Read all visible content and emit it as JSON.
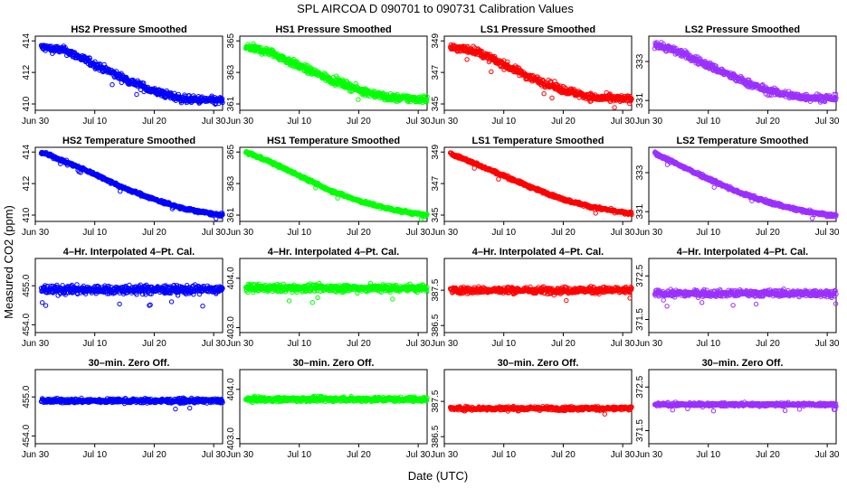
{
  "figure": {
    "title": "SPL    AIRCOA D    090701 to 090731    Calibration Values",
    "xlabel": "Date (UTC)",
    "ylabel": "Measured CO2 (ppm)"
  },
  "chart_data": [
    {
      "type": "scatter",
      "title": "HS2 Pressure Smoothed",
      "color": "#0000ff",
      "row": 0,
      "col": 0,
      "ylim": [
        409.6,
        414.3
      ],
      "yticks": [
        410,
        412,
        414
      ],
      "yticklabels": [
        "410",
        "412",
        "414"
      ],
      "xticks": [
        0,
        10,
        20,
        30
      ],
      "xticklabels": [
        "Jun 30",
        "Jul 10",
        "Jul 20",
        "Jul 30"
      ],
      "xlim": [
        0,
        31.5
      ],
      "trend": [
        [
          1,
          413.6
        ],
        [
          5,
          413.4
        ],
        [
          10,
          412.5
        ],
        [
          15,
          411.6
        ],
        [
          20,
          410.8
        ],
        [
          25,
          410.3
        ],
        [
          31,
          410.2
        ]
      ],
      "noise": 0.25
    },
    {
      "type": "scatter",
      "title": "HS1 Pressure Smoothed",
      "color": "#00ff00",
      "row": 0,
      "col": 1,
      "ylim": [
        360.6,
        365.3
      ],
      "yticks": [
        361,
        363,
        365
      ],
      "yticklabels": [
        "361",
        "363",
        "365"
      ],
      "xticks": [
        0,
        10,
        20,
        30
      ],
      "xticklabels": [
        "Jun 30",
        "Jul 10",
        "Jul 20",
        "Jul 30"
      ],
      "xlim": [
        0,
        31.5
      ],
      "trend": [
        [
          1,
          364.6
        ],
        [
          5,
          364.3
        ],
        [
          10,
          363.4
        ],
        [
          15,
          362.6
        ],
        [
          20,
          361.9
        ],
        [
          25,
          361.4
        ],
        [
          31,
          361.3
        ]
      ],
      "noise": 0.25
    },
    {
      "type": "scatter",
      "title": "LS1 Pressure Smoothed",
      "color": "#ff0000",
      "row": 0,
      "col": 2,
      "ylim": [
        344.6,
        349.3
      ],
      "yticks": [
        345,
        347,
        349
      ],
      "yticklabels": [
        "345",
        "347",
        "349"
      ],
      "xticks": [
        0,
        10,
        20,
        30
      ],
      "xticklabels": [
        "Jun 30",
        "Jul 10",
        "Jul 20",
        "Jul 30"
      ],
      "xlim": [
        0,
        31.5
      ],
      "trend": [
        [
          1,
          348.6
        ],
        [
          5,
          348.4
        ],
        [
          10,
          347.5
        ],
        [
          15,
          346.6
        ],
        [
          20,
          345.9
        ],
        [
          25,
          345.4
        ],
        [
          31,
          345.3
        ]
      ],
      "noise": 0.25
    },
    {
      "type": "scatter",
      "title": "LS2 Pressure Smoothed",
      "color": "#9b30ff",
      "row": 0,
      "col": 3,
      "ylim": [
        330.5,
        334.3
      ],
      "yticks": [
        331,
        333
      ],
      "yticklabels": [
        "331",
        "333"
      ],
      "xticks": [
        0,
        10,
        20,
        30
      ],
      "xticklabels": [
        "Jun 30",
        "Jul 10",
        "Jul 20",
        "Jul 30"
      ],
      "xlim": [
        0,
        31.5
      ],
      "trend": [
        [
          1,
          333.9
        ],
        [
          5,
          333.5
        ],
        [
          10,
          332.8
        ],
        [
          15,
          332.1
        ],
        [
          20,
          331.5
        ],
        [
          25,
          331.2
        ],
        [
          31,
          331.1
        ]
      ],
      "noise": 0.2
    },
    {
      "type": "scatter",
      "title": "HS2 Temperature Smoothed",
      "color": "#0000ff",
      "row": 1,
      "col": 0,
      "ylim": [
        409.6,
        414.3
      ],
      "yticks": [
        410,
        412,
        414
      ],
      "yticklabels": [
        "410",
        "412",
        "414"
      ],
      "xticks": [
        0,
        10,
        20,
        30
      ],
      "xticklabels": [
        "Jun 30",
        "Jul 10",
        "Jul 20",
        "Jul 30"
      ],
      "xlim": [
        0,
        31.5
      ],
      "trend": [
        [
          1,
          414.0
        ],
        [
          5,
          413.4
        ],
        [
          10,
          412.6
        ],
        [
          15,
          411.7
        ],
        [
          20,
          411.0
        ],
        [
          25,
          410.4
        ],
        [
          31,
          410.0
        ]
      ],
      "noise": 0.1
    },
    {
      "type": "scatter",
      "title": "HS1 Temperature Smoothed",
      "color": "#00ff00",
      "row": 1,
      "col": 1,
      "ylim": [
        360.6,
        365.3
      ],
      "yticks": [
        361,
        363,
        365
      ],
      "yticklabels": [
        "361",
        "363",
        "365"
      ],
      "xticks": [
        0,
        10,
        20,
        30
      ],
      "xticklabels": [
        "Jun 30",
        "Jul 10",
        "Jul 20",
        "Jul 30"
      ],
      "xlim": [
        0,
        31.5
      ],
      "trend": [
        [
          1,
          365.0
        ],
        [
          5,
          364.4
        ],
        [
          10,
          363.5
        ],
        [
          15,
          362.6
        ],
        [
          20,
          361.9
        ],
        [
          25,
          361.4
        ],
        [
          31,
          361.0
        ]
      ],
      "noise": 0.1
    },
    {
      "type": "scatter",
      "title": "LS1 Temperature Smoothed",
      "color": "#ff0000",
      "row": 1,
      "col": 2,
      "ylim": [
        344.6,
        349.3
      ],
      "yticks": [
        345,
        347,
        349
      ],
      "yticklabels": [
        "345",
        "347",
        "349"
      ],
      "xticks": [
        0,
        10,
        20,
        30
      ],
      "xticklabels": [
        "Jun 30",
        "Jul 10",
        "Jul 20",
        "Jul 30"
      ],
      "xlim": [
        0,
        31.5
      ],
      "trend": [
        [
          1,
          348.9
        ],
        [
          5,
          348.3
        ],
        [
          10,
          347.5
        ],
        [
          15,
          346.7
        ],
        [
          20,
          346.0
        ],
        [
          25,
          345.5
        ],
        [
          31,
          345.1
        ]
      ],
      "noise": 0.1
    },
    {
      "type": "scatter",
      "title": "LS2 Temperature Smoothed",
      "color": "#9b30ff",
      "row": 1,
      "col": 3,
      "ylim": [
        330.5,
        334.3
      ],
      "yticks": [
        331,
        333
      ],
      "yticklabels": [
        "331",
        "333"
      ],
      "xticks": [
        0,
        10,
        20,
        30
      ],
      "xticklabels": [
        "Jun 30",
        "Jul 10",
        "Jul 20",
        "Jul 30"
      ],
      "xlim": [
        0,
        31.5
      ],
      "trend": [
        [
          1,
          334.0
        ],
        [
          5,
          333.4
        ],
        [
          10,
          332.7
        ],
        [
          15,
          332.0
        ],
        [
          20,
          331.5
        ],
        [
          25,
          331.1
        ],
        [
          31,
          330.8
        ]
      ],
      "noise": 0.1
    },
    {
      "type": "scatter",
      "title": "4–Hr. Interpolated 4–Pt. Cal.",
      "color": "#0000ff",
      "row": 2,
      "col": 0,
      "ylim": [
        453.8,
        455.7
      ],
      "yticks": [
        454.0,
        455.0
      ],
      "yticklabels": [
        "454.0",
        "455.0"
      ],
      "xticks": [
        0,
        10,
        20,
        30
      ],
      "xticklabels": [
        "Jun 30",
        "Jul 10",
        "Jul 20",
        "Jul 30"
      ],
      "xlim": [
        0,
        31.5
      ],
      "trend": [
        [
          1,
          454.9
        ],
        [
          31,
          454.9
        ]
      ],
      "noise": 0.12
    },
    {
      "type": "scatter",
      "title": "4–Hr. Interpolated 4–Pt. Cal.",
      "color": "#00ff00",
      "row": 2,
      "col": 1,
      "ylim": [
        402.9,
        404.4
      ],
      "yticks": [
        403.0,
        404.0
      ],
      "yticklabels": [
        "403.0",
        "404.0"
      ],
      "xticks": [
        0,
        10,
        20,
        30
      ],
      "xticklabels": [
        "Jun 30",
        "Jul 10",
        "Jul 20",
        "Jul 30"
      ],
      "xlim": [
        0,
        31.5
      ],
      "trend": [
        [
          1,
          403.8
        ],
        [
          31,
          403.8
        ]
      ],
      "noise": 0.08
    },
    {
      "type": "scatter",
      "title": "4–Hr. Interpolated 4–Pt. Cal.",
      "color": "#ff0000",
      "row": 2,
      "col": 2,
      "ylim": [
        386.3,
        388.4
      ],
      "yticks": [
        386.5,
        387.5
      ],
      "yticklabels": [
        "386.5",
        "387.5"
      ],
      "xticks": [
        0,
        10,
        20,
        30
      ],
      "xticklabels": [
        "Jun 30",
        "Jul 10",
        "Jul 20",
        "Jul 30"
      ],
      "xlim": [
        0,
        31.5
      ],
      "trend": [
        [
          1,
          387.5
        ],
        [
          31,
          387.5
        ]
      ],
      "noise": 0.1
    },
    {
      "type": "scatter",
      "title": "4–Hr. Interpolated 4–Pt. Cal.",
      "color": "#9b30ff",
      "row": 2,
      "col": 3,
      "ylim": [
        371.2,
        372.9
      ],
      "yticks": [
        371.5,
        372.5
      ],
      "yticklabels": [
        "371.5",
        "372.5"
      ],
      "xticks": [
        0,
        10,
        20,
        30
      ],
      "xticklabels": [
        "Jun 30",
        "Jul 10",
        "Jul 20",
        "Jul 30"
      ],
      "xlim": [
        0,
        31.5
      ],
      "trend": [
        [
          1,
          372.1
        ],
        [
          31,
          372.1
        ]
      ],
      "noise": 0.08
    },
    {
      "type": "scatter",
      "title": "30–min. Zero Off.",
      "color": "#0000ff",
      "row": 3,
      "col": 0,
      "ylim": [
        453.8,
        455.7
      ],
      "yticks": [
        454.0,
        455.0
      ],
      "yticklabels": [
        "454.0",
        "455.0"
      ],
      "xticks": [
        0,
        10,
        20,
        30
      ],
      "xticklabels": [
        "Jun 30",
        "Jul 10",
        "Jul 20",
        "Jul 30"
      ],
      "xlim": [
        0,
        31.5
      ],
      "trend": [
        [
          1,
          454.9
        ],
        [
          31,
          454.9
        ]
      ],
      "noise": 0.06
    },
    {
      "type": "scatter",
      "title": "30–min. Zero Off.",
      "color": "#00ff00",
      "row": 3,
      "col": 1,
      "ylim": [
        402.9,
        404.4
      ],
      "yticks": [
        403.0,
        404.0
      ],
      "yticklabels": [
        "403.0",
        "404.0"
      ],
      "xticks": [
        0,
        10,
        20,
        30
      ],
      "xticklabels": [
        "Jun 30",
        "Jul 10",
        "Jul 20",
        "Jul 30"
      ],
      "xlim": [
        0,
        31.5
      ],
      "trend": [
        [
          1,
          403.8
        ],
        [
          31,
          403.8
        ]
      ],
      "noise": 0.05
    },
    {
      "type": "scatter",
      "title": "30–min. Zero Off.",
      "color": "#ff0000",
      "row": 3,
      "col": 2,
      "ylim": [
        386.3,
        388.4
      ],
      "yticks": [
        386.5,
        387.5
      ],
      "yticklabels": [
        "386.5",
        "387.5"
      ],
      "xticks": [
        0,
        10,
        20,
        30
      ],
      "xticklabels": [
        "Jun 30",
        "Jul 10",
        "Jul 20",
        "Jul 30"
      ],
      "xlim": [
        0,
        31.5
      ],
      "trend": [
        [
          1,
          387.3
        ],
        [
          31,
          387.3
        ]
      ],
      "noise": 0.06
    },
    {
      "type": "scatter",
      "title": "30–min. Zero Off.",
      "color": "#9b30ff",
      "row": 3,
      "col": 3,
      "ylim": [
        371.2,
        372.9
      ],
      "yticks": [
        371.5,
        372.5
      ],
      "yticklabels": [
        "371.5",
        "372.5"
      ],
      "xticks": [
        0,
        10,
        20,
        30
      ],
      "xticklabels": [
        "Jun 30",
        "Jul 10",
        "Jul 20",
        "Jul 30"
      ],
      "xlim": [
        0,
        31.5
      ],
      "trend": [
        [
          1,
          372.1
        ],
        [
          31,
          372.1
        ]
      ],
      "noise": 0.04
    }
  ]
}
